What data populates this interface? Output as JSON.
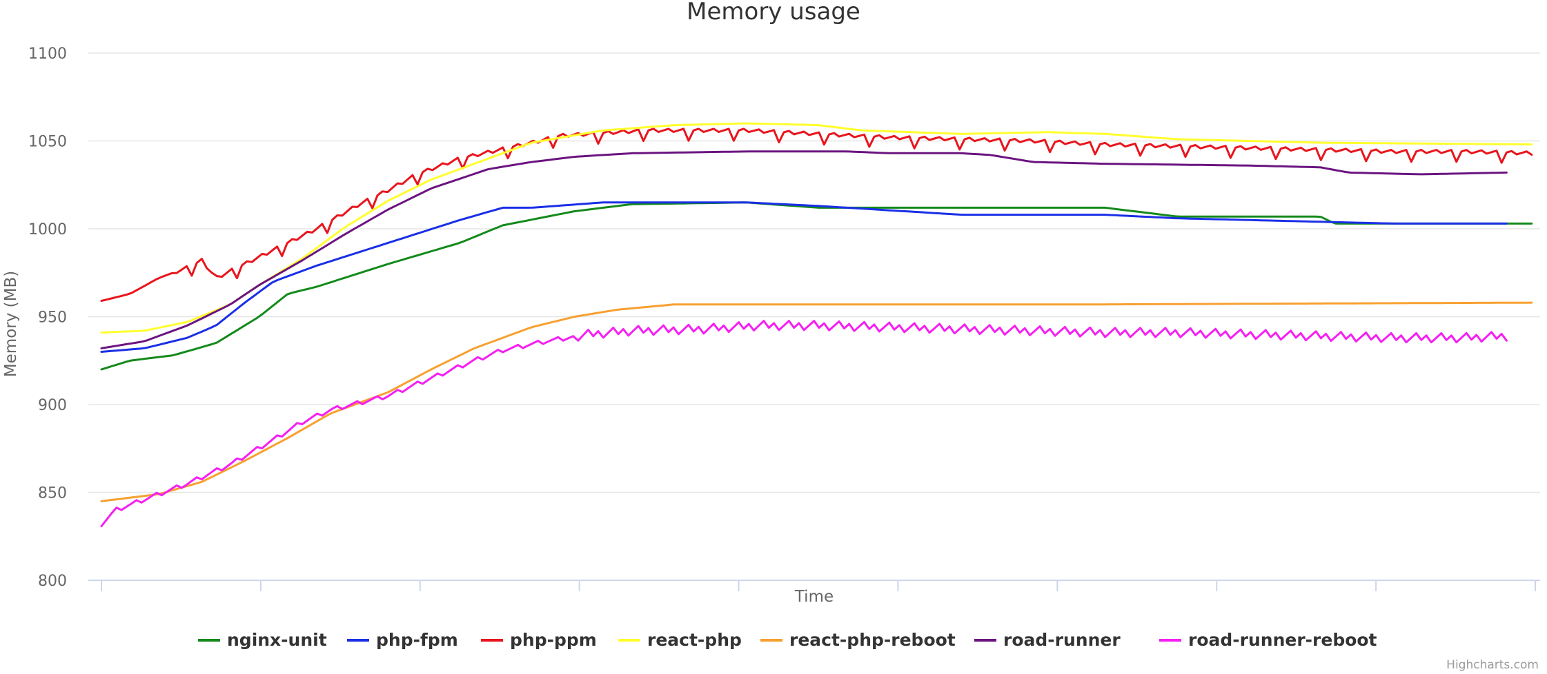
{
  "chart_data": {
    "type": "line",
    "title": "Memory usage",
    "xlabel": "Time",
    "ylabel": "Memory (MB)",
    "ylim": [
      800,
      1100
    ],
    "yticks": [
      "800",
      "850",
      "900",
      "950",
      "1000",
      "1050",
      "1100"
    ],
    "grid": true,
    "legend_position": "bottom-center",
    "credits": "Highcharts.com",
    "x_count": 100,
    "series": [
      {
        "name": "nginx-unit",
        "color": "#138a1b",
        "key": [
          [
            0,
            920
          ],
          [
            2,
            925
          ],
          [
            5,
            928
          ],
          [
            8,
            935
          ],
          [
            11,
            950
          ],
          [
            13,
            963
          ],
          [
            15,
            967
          ],
          [
            20,
            980
          ],
          [
            25,
            992
          ],
          [
            28,
            1002
          ],
          [
            33,
            1010
          ],
          [
            37,
            1014
          ],
          [
            45,
            1015
          ],
          [
            50,
            1012
          ],
          [
            70,
            1012
          ],
          [
            75,
            1007
          ],
          [
            85,
            1007
          ],
          [
            86,
            1003
          ],
          [
            100,
            1003
          ]
        ]
      },
      {
        "name": "php-fpm",
        "color": "#1a2fe6",
        "key": [
          [
            0,
            930
          ],
          [
            3,
            932
          ],
          [
            6,
            938
          ],
          [
            8,
            945
          ],
          [
            10,
            958
          ],
          [
            12,
            970
          ],
          [
            15,
            979
          ],
          [
            20,
            992
          ],
          [
            25,
            1005
          ],
          [
            28,
            1012
          ],
          [
            30,
            1012
          ],
          [
            35,
            1015
          ],
          [
            45,
            1015
          ],
          [
            50,
            1013
          ],
          [
            60,
            1008
          ],
          [
            70,
            1008
          ],
          [
            75,
            1006
          ],
          [
            80,
            1005
          ],
          [
            90,
            1003
          ],
          [
            98,
            1003
          ]
        ]
      },
      {
        "name": "php-ppm",
        "color": "#e8151d",
        "key": [
          [
            0,
            959
          ],
          [
            2,
            963
          ],
          [
            4,
            972
          ],
          [
            6,
            978
          ],
          [
            7,
            982
          ],
          [
            8,
            972
          ],
          [
            10,
            980
          ],
          [
            12,
            988
          ],
          [
            15,
            1000
          ],
          [
            18,
            1014
          ],
          [
            20,
            1022
          ],
          [
            22,
            1031
          ],
          [
            25,
            1040
          ],
          [
            30,
            1049
          ],
          [
            32,
            1053
          ],
          [
            38,
            1056
          ],
          [
            45,
            1056
          ],
          [
            50,
            1054
          ],
          [
            55,
            1052
          ],
          [
            60,
            1051
          ],
          [
            65,
            1050
          ],
          [
            70,
            1048
          ],
          [
            75,
            1047
          ],
          [
            80,
            1046
          ],
          [
            85,
            1045
          ],
          [
            90,
            1044
          ],
          [
            95,
            1044
          ],
          [
            100,
            1043
          ]
        ]
      },
      {
        "name": "react-php",
        "color": "#ffff2e",
        "key": [
          [
            0,
            941
          ],
          [
            3,
            942
          ],
          [
            6,
            947
          ],
          [
            9,
            957
          ],
          [
            11,
            968
          ],
          [
            14,
            983
          ],
          [
            17,
            1001
          ],
          [
            20,
            1016
          ],
          [
            23,
            1028
          ],
          [
            27,
            1040
          ],
          [
            30,
            1049
          ],
          [
            35,
            1056
          ],
          [
            40,
            1059
          ],
          [
            45,
            1060
          ],
          [
            50,
            1059
          ],
          [
            53,
            1056
          ],
          [
            60,
            1054
          ],
          [
            66,
            1055
          ],
          [
            70,
            1054
          ],
          [
            75,
            1051
          ],
          [
            80,
            1050
          ],
          [
            85,
            1049
          ],
          [
            100,
            1048
          ]
        ]
      },
      {
        "name": "react-php-reboot",
        "color": "#f7a030",
        "key": [
          [
            0,
            845
          ],
          [
            4,
            849
          ],
          [
            7,
            856
          ],
          [
            10,
            868
          ],
          [
            13,
            881
          ],
          [
            16,
            895
          ],
          [
            20,
            907
          ],
          [
            23,
            920
          ],
          [
            26,
            932
          ],
          [
            28,
            938
          ],
          [
            30,
            944
          ],
          [
            33,
            950
          ],
          [
            36,
            954
          ],
          [
            40,
            957
          ],
          [
            50,
            957
          ],
          [
            70,
            957
          ],
          [
            100,
            958
          ]
        ]
      },
      {
        "name": "road-runner",
        "color": "#6b1480",
        "key": [
          [
            0,
            932
          ],
          [
            3,
            936
          ],
          [
            6,
            945
          ],
          [
            9,
            957
          ],
          [
            11,
            968
          ],
          [
            14,
            982
          ],
          [
            17,
            997
          ],
          [
            20,
            1011
          ],
          [
            23,
            1023
          ],
          [
            27,
            1034
          ],
          [
            30,
            1038
          ],
          [
            33,
            1041
          ],
          [
            37,
            1043
          ],
          [
            45,
            1044
          ],
          [
            52,
            1044
          ],
          [
            55,
            1043
          ],
          [
            60,
            1043
          ],
          [
            62,
            1042
          ],
          [
            65,
            1038
          ],
          [
            70,
            1037
          ],
          [
            80,
            1036
          ],
          [
            85,
            1035
          ],
          [
            87,
            1032
          ],
          [
            92,
            1031
          ],
          [
            98,
            1032
          ]
        ]
      },
      {
        "name": "road-runner-reboot",
        "color": "#f51ff2",
        "key": [
          [
            0,
            832
          ],
          [
            1,
            840
          ],
          [
            3,
            846
          ],
          [
            6,
            855
          ],
          [
            9,
            866
          ],
          [
            12,
            880
          ],
          [
            14,
            890
          ],
          [
            16,
            897
          ],
          [
            20,
            905
          ],
          [
            23,
            915
          ],
          [
            26,
            925
          ],
          [
            28,
            931
          ],
          [
            31,
            936
          ],
          [
            34,
            940
          ],
          [
            37,
            942
          ],
          [
            42,
            943
          ],
          [
            46,
            945
          ],
          [
            50,
            945
          ],
          [
            55,
            944
          ],
          [
            60,
            943
          ],
          [
            65,
            942
          ],
          [
            70,
            941
          ],
          [
            75,
            941
          ],
          [
            80,
            940
          ],
          [
            85,
            939
          ],
          [
            90,
            938
          ],
          [
            95,
            938
          ],
          [
            98,
            939
          ]
        ]
      }
    ]
  }
}
